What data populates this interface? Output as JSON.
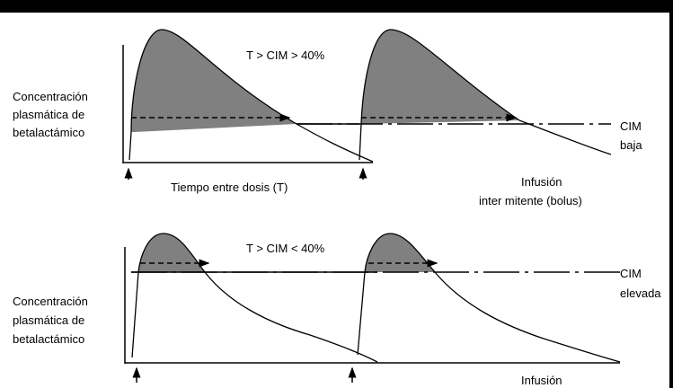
{
  "ylabel_lines": [
    "Concentración",
    "plasmática de",
    "betalactámico"
  ],
  "top": {
    "condition": "T > CIM > 40%",
    "cim_label_lines": [
      "CIM",
      "baja"
    ],
    "interval_label": "Tiempo entre dosis (T)",
    "mode_label_lines": [
      "Infusión",
      "inter mitente (bolus)"
    ]
  },
  "bottom": {
    "condition": "T > CIM < 40%",
    "cim_label_lines": [
      "CIM",
      "elevada"
    ],
    "mode_label_lines": [
      "Infusión"
    ]
  },
  "colors": {
    "shade": "#808080",
    "line": "#000000",
    "background": "#ffffff"
  }
}
